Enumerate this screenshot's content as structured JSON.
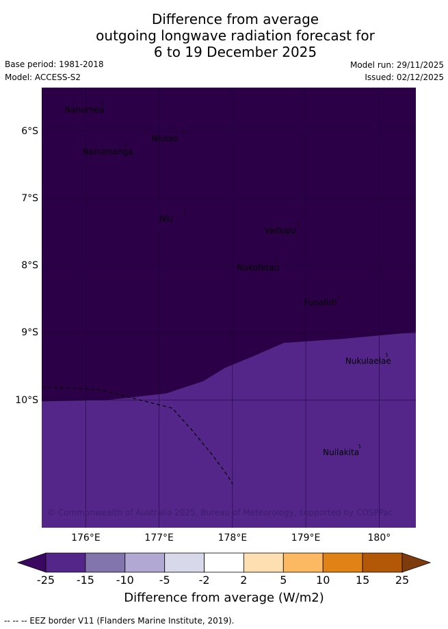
{
  "title_lines": [
    "Difference from average",
    "outgoing longwave radiation forecast for",
    "6 to 19 December 2025"
  ],
  "meta": {
    "base_period": "Base period: 1981-2018",
    "model": "Model: ACCESS-S2",
    "model_run": "Model run: 29/11/2025",
    "issued": "Issued: 02/12/2025"
  },
  "map": {
    "lon_range": [
      175.4,
      180.5
    ],
    "lat_range": [
      -11.9,
      -5.35
    ],
    "lat_ticks": [
      {
        "value": -6,
        "label": "6°S"
      },
      {
        "value": -7,
        "label": "7°S"
      },
      {
        "value": -8,
        "label": "8°S"
      },
      {
        "value": -9,
        "label": "9°S"
      },
      {
        "value": -10,
        "label": "10°S"
      }
    ],
    "lon_ticks": [
      {
        "value": 176,
        "label": "176°E"
      },
      {
        "value": 177,
        "label": "177°E"
      },
      {
        "value": 178,
        "label": "178°E"
      },
      {
        "value": 179,
        "label": "179°E"
      },
      {
        "value": 180,
        "label": "180°"
      }
    ],
    "colors": {
      "lt_minus_25": "#2b0046",
      "minus_25_to_minus_15": "#54268a",
      "gridline": "#1a0030"
    },
    "boundary_minus_25": [
      [
        175.4,
        -10.02
      ],
      [
        176.3,
        -10.0
      ],
      [
        177.1,
        -9.9
      ],
      [
        177.6,
        -9.72
      ],
      [
        177.9,
        -9.52
      ],
      [
        178.3,
        -9.34
      ],
      [
        178.7,
        -9.15
      ],
      [
        179.5,
        -9.09
      ],
      [
        180.5,
        -8.99
      ]
    ],
    "eez_border": [
      [
        175.4,
        -9.81
      ],
      [
        175.8,
        -9.82
      ],
      [
        176.2,
        -9.85
      ],
      [
        176.6,
        -9.96
      ],
      [
        177.18,
        -10.12
      ],
      [
        177.45,
        -10.45
      ],
      [
        177.75,
        -10.85
      ],
      [
        177.95,
        -11.15
      ],
      [
        178.0,
        -11.25
      ]
    ],
    "places": [
      {
        "name": "Nanumea",
        "lon": 175.98,
        "lat": -5.68
      },
      {
        "name": "Niutao",
        "lon": 177.08,
        "lat": -6.11
      },
      {
        "name": "Nanumanga",
        "lon": 176.3,
        "lat": -6.3
      },
      {
        "name": "Niu",
        "lon": 177.1,
        "lat": -7.3
      },
      {
        "name": "Vaitupu",
        "lon": 178.65,
        "lat": -7.48
      },
      {
        "name": "Nukufetau",
        "lon": 178.35,
        "lat": -8.03
      },
      {
        "name": "Funafuti",
        "lon": 179.2,
        "lat": -8.55
      },
      {
        "name": "Nukulaelae",
        "lon": 179.85,
        "lat": -9.42
      },
      {
        "name": "Nuilakita",
        "lon": 179.48,
        "lat": -10.78
      }
    ],
    "credit": "© Commonwealth of Australia 2025, Bureau of Meteorology, supported by COSPPac"
  },
  "colorbar": {
    "title": "Difference from average (W/m2)",
    "ticks": [
      "-25",
      "-15",
      "-10",
      "-5",
      "-2",
      "2",
      "5",
      "10",
      "15",
      "25"
    ],
    "under_color": "#3a0860",
    "over_color": "#7e3b0c",
    "band_colors": [
      "#54268a",
      "#8275ad",
      "#b1a9d3",
      "#d8d8eb",
      "#ffffff",
      "#fedfb2",
      "#fdb862",
      "#e08215",
      "#b35807"
    ]
  },
  "footnote": "--  --  -- EEZ border V11 (Flanders Marine Institute, 2019)."
}
